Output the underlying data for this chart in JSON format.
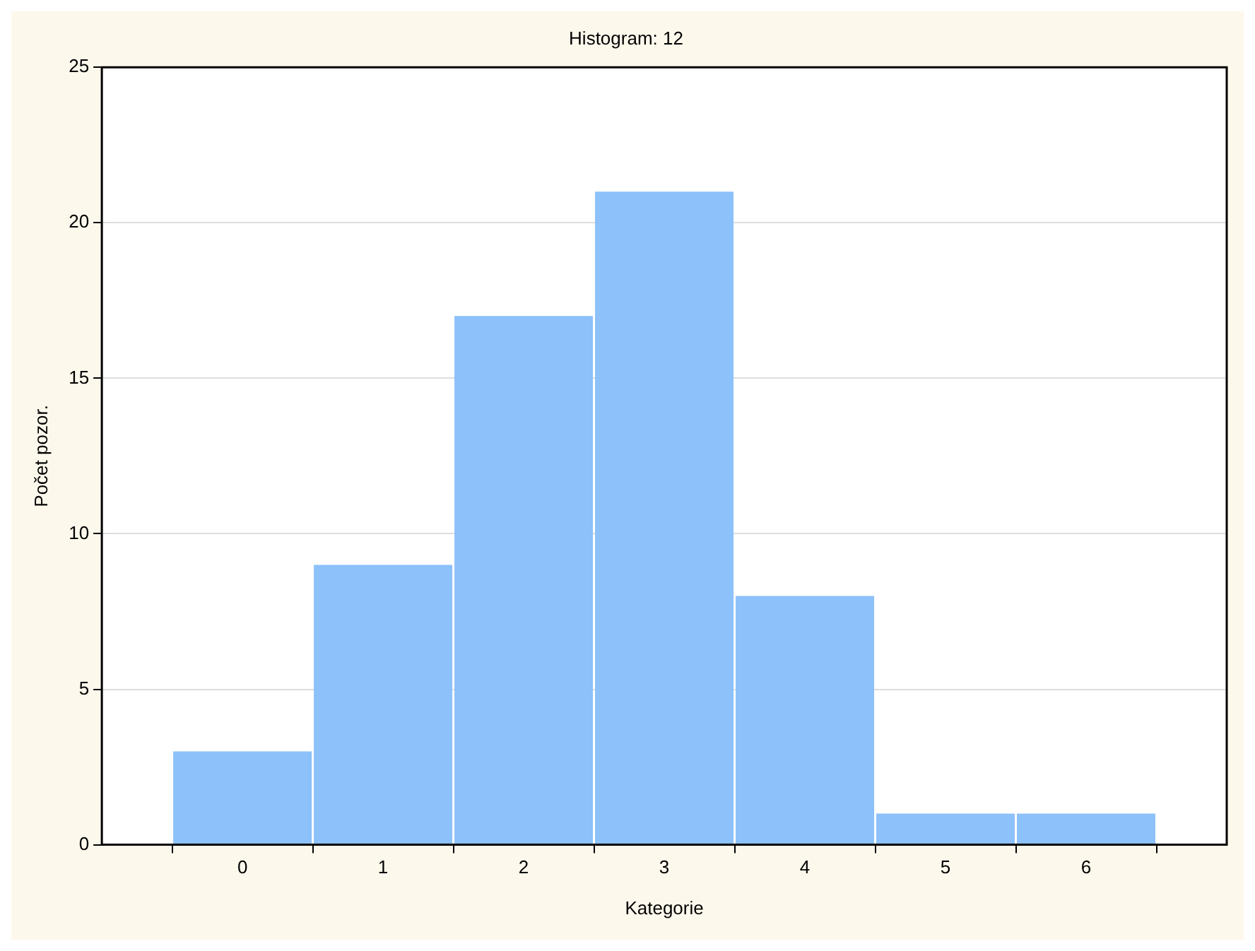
{
  "chart_data": {
    "type": "histogram",
    "title": "Histogram: 12",
    "xlabel": "Kategorie",
    "ylabel": "Počet pozor.",
    "bins": [
      -0.5,
      0.5,
      1.5,
      2.5,
      3.5,
      4.5,
      5.5,
      6.5
    ],
    "values": [
      3,
      9,
      17,
      21,
      8,
      1,
      1
    ],
    "color": "#8cc1fa",
    "xlim": [
      -1,
      7
    ],
    "xticks": [
      0,
      1,
      2,
      3,
      4,
      5,
      6
    ],
    "ylim": [
      0,
      25
    ],
    "yticks": [
      0,
      5,
      10,
      15,
      20,
      25
    ],
    "grid": "y",
    "legend": false
  }
}
